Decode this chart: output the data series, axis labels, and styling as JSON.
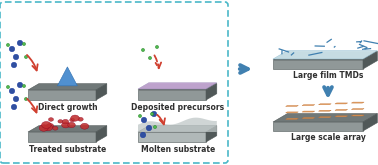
{
  "bg_color": "#ffffff",
  "labels": {
    "direct_growth": "Direct growth",
    "deposited": "Deposited precursors",
    "treated": "Treated substrate",
    "molten": "Molten substrate",
    "large_film": "Large film TMDs",
    "large_array": "Large scale array"
  },
  "colors": {
    "dashed_box_color": "#4ab8c8",
    "substrate_dark": "#707878",
    "substrate_light": "#909898",
    "substrate_edge": "#505858",
    "blue_triangle": "#5090d0",
    "purple_film": "#c8a8d8",
    "blue_dots": "#3050a0",
    "green_dots": "#50b850",
    "red_dots": "#c03030",
    "red_arrows": "#d04030",
    "large_film_bg": "#d0e8f0",
    "large_film_lines": "#4080b0",
    "array_squares": "#e8a060",
    "arrow_blue": "#4080b0",
    "label_color": "#303030"
  }
}
